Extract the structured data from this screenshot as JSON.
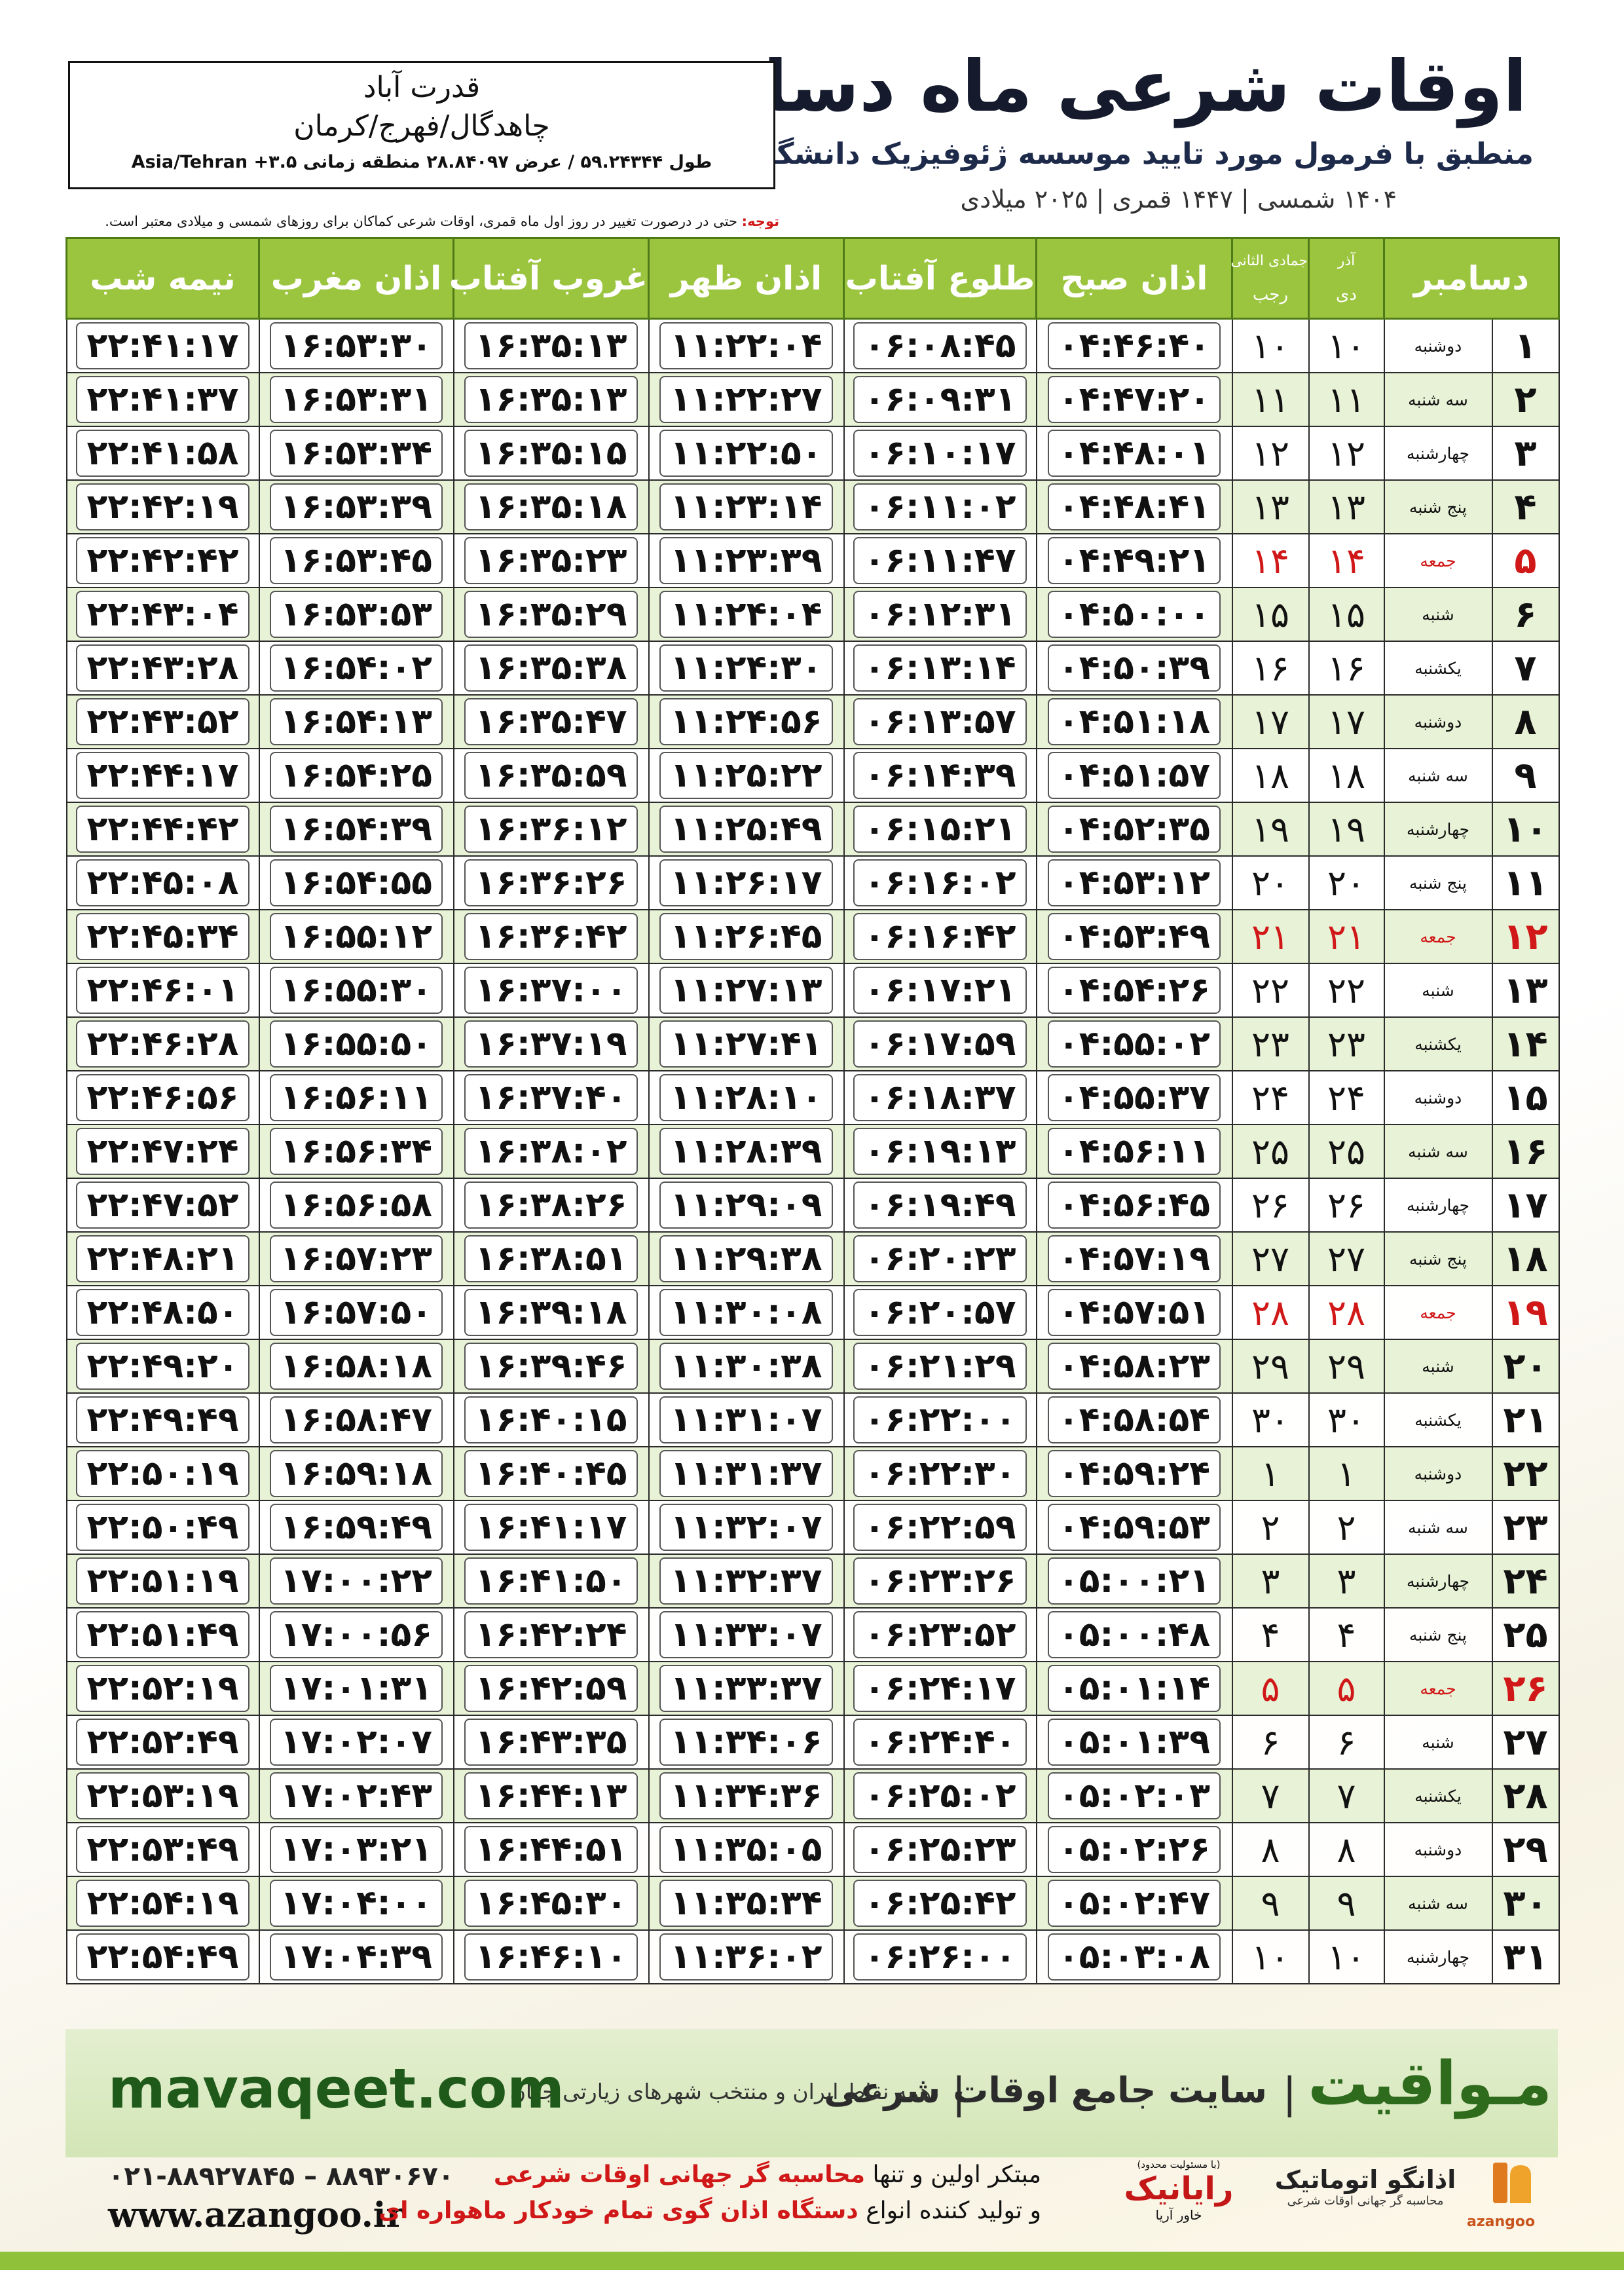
{
  "header": {
    "title": "اوقات شرعی ماه دسامبر",
    "subtitle": "منطبق با فرمول مورد تایید موسسه ژئوفیزیک دانشگاه تهران",
    "date_line": "۱۴۰۴ شمسی | ۱۴۴۷ قمری | ۲۰۲۵ میلادی"
  },
  "location": {
    "name": "قدرت آباد",
    "region": "چاهدگال/فهرج/کرمان",
    "coords": "طول ۵۹.۲۴۳۴۴ / عرض ۲۸.۸۴۰۹۷ منطقه زمانی ۳.۵+ Asia/Tehran"
  },
  "note": {
    "label": "توجه:",
    "text": "حتی در درصورت تغییر در روز اول ماه قمری، اوقات شرعی کماکان برای روزهای شمسی و میلادی معتبر است."
  },
  "table": {
    "columns": [
      "دسامبر",
      "دی",
      "رجب",
      "اذان صبح",
      "طلوع آفتاب",
      "اذان ظهر",
      "غروب آفتاب",
      "اذان مغرب",
      "نیمه شب"
    ],
    "month_labels": [
      "آذر",
      "جمادی الثانی"
    ],
    "holiday_rows": [
      4,
      11,
      18,
      25
    ],
    "holiday_color": "#d01818",
    "rows": [
      [
        "۱",
        "دوشنبه",
        "۱۰",
        "۱۰",
        "۰۴:۴۶:۴۰",
        "۰۶:۰۸:۴۵",
        "۱۱:۲۲:۰۴",
        "۱۶:۳۵:۱۳",
        "۱۶:۵۳:۳۰",
        "۲۲:۴۱:۱۷"
      ],
      [
        "۲",
        "سه شنبه",
        "۱۱",
        "۱۱",
        "۰۴:۴۷:۲۰",
        "۰۶:۰۹:۳۱",
        "۱۱:۲۲:۲۷",
        "۱۶:۳۵:۱۳",
        "۱۶:۵۳:۳۱",
        "۲۲:۴۱:۳۷"
      ],
      [
        "۳",
        "چهارشنبه",
        "۱۲",
        "۱۲",
        "۰۴:۴۸:۰۱",
        "۰۶:۱۰:۱۷",
        "۱۱:۲۲:۵۰",
        "۱۶:۳۵:۱۵",
        "۱۶:۵۳:۳۴",
        "۲۲:۴۱:۵۸"
      ],
      [
        "۴",
        "پنج شنبه",
        "۱۳",
        "۱۳",
        "۰۴:۴۸:۴۱",
        "۰۶:۱۱:۰۲",
        "۱۱:۲۳:۱۴",
        "۱۶:۳۵:۱۸",
        "۱۶:۵۳:۳۹",
        "۲۲:۴۲:۱۹"
      ],
      [
        "۵",
        "جمعه",
        "۱۴",
        "۱۴",
        "۰۴:۴۹:۲۱",
        "۰۶:۱۱:۴۷",
        "۱۱:۲۳:۳۹",
        "۱۶:۳۵:۲۳",
        "۱۶:۵۳:۴۵",
        "۲۲:۴۲:۴۲"
      ],
      [
        "۶",
        "شنبه",
        "۱۵",
        "۱۵",
        "۰۴:۵۰:۰۰",
        "۰۶:۱۲:۳۱",
        "۱۱:۲۴:۰۴",
        "۱۶:۳۵:۲۹",
        "۱۶:۵۳:۵۳",
        "۲۲:۴۳:۰۴"
      ],
      [
        "۷",
        "یکشنبه",
        "۱۶",
        "۱۶",
        "۰۴:۵۰:۳۹",
        "۰۶:۱۳:۱۴",
        "۱۱:۲۴:۳۰",
        "۱۶:۳۵:۳۸",
        "۱۶:۵۴:۰۲",
        "۲۲:۴۳:۲۸"
      ],
      [
        "۸",
        "دوشنبه",
        "۱۷",
        "۱۷",
        "۰۴:۵۱:۱۸",
        "۰۶:۱۳:۵۷",
        "۱۱:۲۴:۵۶",
        "۱۶:۳۵:۴۷",
        "۱۶:۵۴:۱۳",
        "۲۲:۴۳:۵۲"
      ],
      [
        "۹",
        "سه شنبه",
        "۱۸",
        "۱۸",
        "۰۴:۵۱:۵۷",
        "۰۶:۱۴:۳۹",
        "۱۱:۲۵:۲۲",
        "۱۶:۳۵:۵۹",
        "۱۶:۵۴:۲۵",
        "۲۲:۴۴:۱۷"
      ],
      [
        "۱۰",
        "چهارشنبه",
        "۱۹",
        "۱۹",
        "۰۴:۵۲:۳۵",
        "۰۶:۱۵:۲۱",
        "۱۱:۲۵:۴۹",
        "۱۶:۳۶:۱۲",
        "۱۶:۵۴:۳۹",
        "۲۲:۴۴:۴۲"
      ],
      [
        "۱۱",
        "پنج شنبه",
        "۲۰",
        "۲۰",
        "۰۴:۵۳:۱۲",
        "۰۶:۱۶:۰۲",
        "۱۱:۲۶:۱۷",
        "۱۶:۳۶:۲۶",
        "۱۶:۵۴:۵۵",
        "۲۲:۴۵:۰۸"
      ],
      [
        "۱۲",
        "جمعه",
        "۲۱",
        "۲۱",
        "۰۴:۵۳:۴۹",
        "۰۶:۱۶:۴۲",
        "۱۱:۲۶:۴۵",
        "۱۶:۳۶:۴۲",
        "۱۶:۵۵:۱۲",
        "۲۲:۴۵:۳۴"
      ],
      [
        "۱۳",
        "شنبه",
        "۲۲",
        "۲۲",
        "۰۴:۵۴:۲۶",
        "۰۶:۱۷:۲۱",
        "۱۱:۲۷:۱۳",
        "۱۶:۳۷:۰۰",
        "۱۶:۵۵:۳۰",
        "۲۲:۴۶:۰۱"
      ],
      [
        "۱۴",
        "یکشنبه",
        "۲۳",
        "۲۳",
        "۰۴:۵۵:۰۲",
        "۰۶:۱۷:۵۹",
        "۱۱:۲۷:۴۱",
        "۱۶:۳۷:۱۹",
        "۱۶:۵۵:۵۰",
        "۲۲:۴۶:۲۸"
      ],
      [
        "۱۵",
        "دوشنبه",
        "۲۴",
        "۲۴",
        "۰۴:۵۵:۳۷",
        "۰۶:۱۸:۳۷",
        "۱۱:۲۸:۱۰",
        "۱۶:۳۷:۴۰",
        "۱۶:۵۶:۱۱",
        "۲۲:۴۶:۵۶"
      ],
      [
        "۱۶",
        "سه شنبه",
        "۲۵",
        "۲۵",
        "۰۴:۵۶:۱۱",
        "۰۶:۱۹:۱۳",
        "۱۱:۲۸:۳۹",
        "۱۶:۳۸:۰۲",
        "۱۶:۵۶:۳۴",
        "۲۲:۴۷:۲۴"
      ],
      [
        "۱۷",
        "چهارشنبه",
        "۲۶",
        "۲۶",
        "۰۴:۵۶:۴۵",
        "۰۶:۱۹:۴۹",
        "۱۱:۲۹:۰۹",
        "۱۶:۳۸:۲۶",
        "۱۶:۵۶:۵۸",
        "۲۲:۴۷:۵۲"
      ],
      [
        "۱۸",
        "پنج شنبه",
        "۲۷",
        "۲۷",
        "۰۴:۵۷:۱۹",
        "۰۶:۲۰:۲۳",
        "۱۱:۲۹:۳۸",
        "۱۶:۳۸:۵۱",
        "۱۶:۵۷:۲۳",
        "۲۲:۴۸:۲۱"
      ],
      [
        "۱۹",
        "جمعه",
        "۲۸",
        "۲۸",
        "۰۴:۵۷:۵۱",
        "۰۶:۲۰:۵۷",
        "۱۱:۳۰:۰۸",
        "۱۶:۳۹:۱۸",
        "۱۶:۵۷:۵۰",
        "۲۲:۴۸:۵۰"
      ],
      [
        "۲۰",
        "شنبه",
        "۲۹",
        "۲۹",
        "۰۴:۵۸:۲۳",
        "۰۶:۲۱:۲۹",
        "۱۱:۳۰:۳۸",
        "۱۶:۳۹:۴۶",
        "۱۶:۵۸:۱۸",
        "۲۲:۴۹:۲۰"
      ],
      [
        "۲۱",
        "یکشنبه",
        "۳۰",
        "۳۰",
        "۰۴:۵۸:۵۴",
        "۰۶:۲۲:۰۰",
        "۱۱:۳۱:۰۷",
        "۱۶:۴۰:۱۵",
        "۱۶:۵۸:۴۷",
        "۲۲:۴۹:۴۹"
      ],
      [
        "۲۲",
        "دوشنبه",
        "۱",
        "۱",
        "۰۴:۵۹:۲۴",
        "۰۶:۲۲:۳۰",
        "۱۱:۳۱:۳۷",
        "۱۶:۴۰:۴۵",
        "۱۶:۵۹:۱۸",
        "۲۲:۵۰:۱۹"
      ],
      [
        "۲۳",
        "سه شنبه",
        "۲",
        "۲",
        "۰۴:۵۹:۵۳",
        "۰۶:۲۲:۵۹",
        "۱۱:۳۲:۰۷",
        "۱۶:۴۱:۱۷",
        "۱۶:۵۹:۴۹",
        "۲۲:۵۰:۴۹"
      ],
      [
        "۲۴",
        "چهارشنبه",
        "۳",
        "۳",
        "۰۵:۰۰:۲۱",
        "۰۶:۲۳:۲۶",
        "۱۱:۳۲:۳۷",
        "۱۶:۴۱:۵۰",
        "۱۷:۰۰:۲۲",
        "۲۲:۵۱:۱۹"
      ],
      [
        "۲۵",
        "پنج شنبه",
        "۴",
        "۴",
        "۰۵:۰۰:۴۸",
        "۰۶:۲۳:۵۲",
        "۱۱:۳۳:۰۷",
        "۱۶:۴۲:۲۴",
        "۱۷:۰۰:۵۶",
        "۲۲:۵۱:۴۹"
      ],
      [
        "۲۶",
        "جمعه",
        "۵",
        "۵",
        "۰۵:۰۱:۱۴",
        "۰۶:۲۴:۱۷",
        "۱۱:۳۳:۳۷",
        "۱۶:۴۲:۵۹",
        "۱۷:۰۱:۳۱",
        "۲۲:۵۲:۱۹"
      ],
      [
        "۲۷",
        "شنبه",
        "۶",
        "۶",
        "۰۵:۰۱:۳۹",
        "۰۶:۲۴:۴۰",
        "۱۱:۳۴:۰۶",
        "۱۶:۴۳:۳۵",
        "۱۷:۰۲:۰۷",
        "۲۲:۵۲:۴۹"
      ],
      [
        "۲۸",
        "یکشنبه",
        "۷",
        "۷",
        "۰۵:۰۲:۰۳",
        "۰۶:۲۵:۰۲",
        "۱۱:۳۴:۳۶",
        "۱۶:۴۴:۱۳",
        "۱۷:۰۲:۴۳",
        "۲۲:۵۳:۱۹"
      ],
      [
        "۲۹",
        "دوشنبه",
        "۸",
        "۸",
        "۰۵:۰۲:۲۶",
        "۰۶:۲۵:۲۳",
        "۱۱:۳۵:۰۵",
        "۱۶:۴۴:۵۱",
        "۱۷:۰۳:۲۱",
        "۲۲:۵۳:۴۹"
      ],
      [
        "۳۰",
        "سه شنبه",
        "۹",
        "۹",
        "۰۵:۰۲:۴۷",
        "۰۶:۲۵:۴۲",
        "۱۱:۳۵:۳۴",
        "۱۶:۴۵:۳۰",
        "۱۷:۰۴:۰۰",
        "۲۲:۵۴:۱۹"
      ],
      [
        "۳۱",
        "چهارشنبه",
        "۱۰",
        "۱۰",
        "۰۵:۰۳:۰۸",
        "۰۶:۲۶:۰۰",
        "۱۱:۳۶:۰۲",
        "۱۶:۴۶:۱۰",
        "۱۷:۰۴:۳۹",
        "۲۲:۵۴:۴۹"
      ]
    ]
  },
  "footer": {
    "brand": "مـواقیت",
    "slogan": "سایت جامع اوقات شرعی",
    "sub": "همه نقاط ایران و منتخب شهرهای زیارتی جهان",
    "site": "mavaqeet.com"
  },
  "contact": {
    "phone": "۰۲۱-۸۸۹۲۷۸۴۵ – ۸۸۹۳۰۶۷۰",
    "web": "www.azangoo.ir",
    "line1_a": "مبتکر اولین و تنها",
    "line1_b": "محاسبه گر جهانی اوقات شرعی",
    "line2_a": "و تولید کننده انواع",
    "line2_b": "دستگاه اذان گوی تمام خودکار ماهواره ای"
  },
  "logos": {
    "raianik_tag": "(با مسئولیت محدود)",
    "raianik": "رایانیک",
    "raianik_sub": "خاور آریا",
    "azangoo": "اذانگو اتوماتیک",
    "azangoo_sub": "محاسبه گر جهانی اوقات شرعی",
    "azangoo_en": "azangoo"
  }
}
